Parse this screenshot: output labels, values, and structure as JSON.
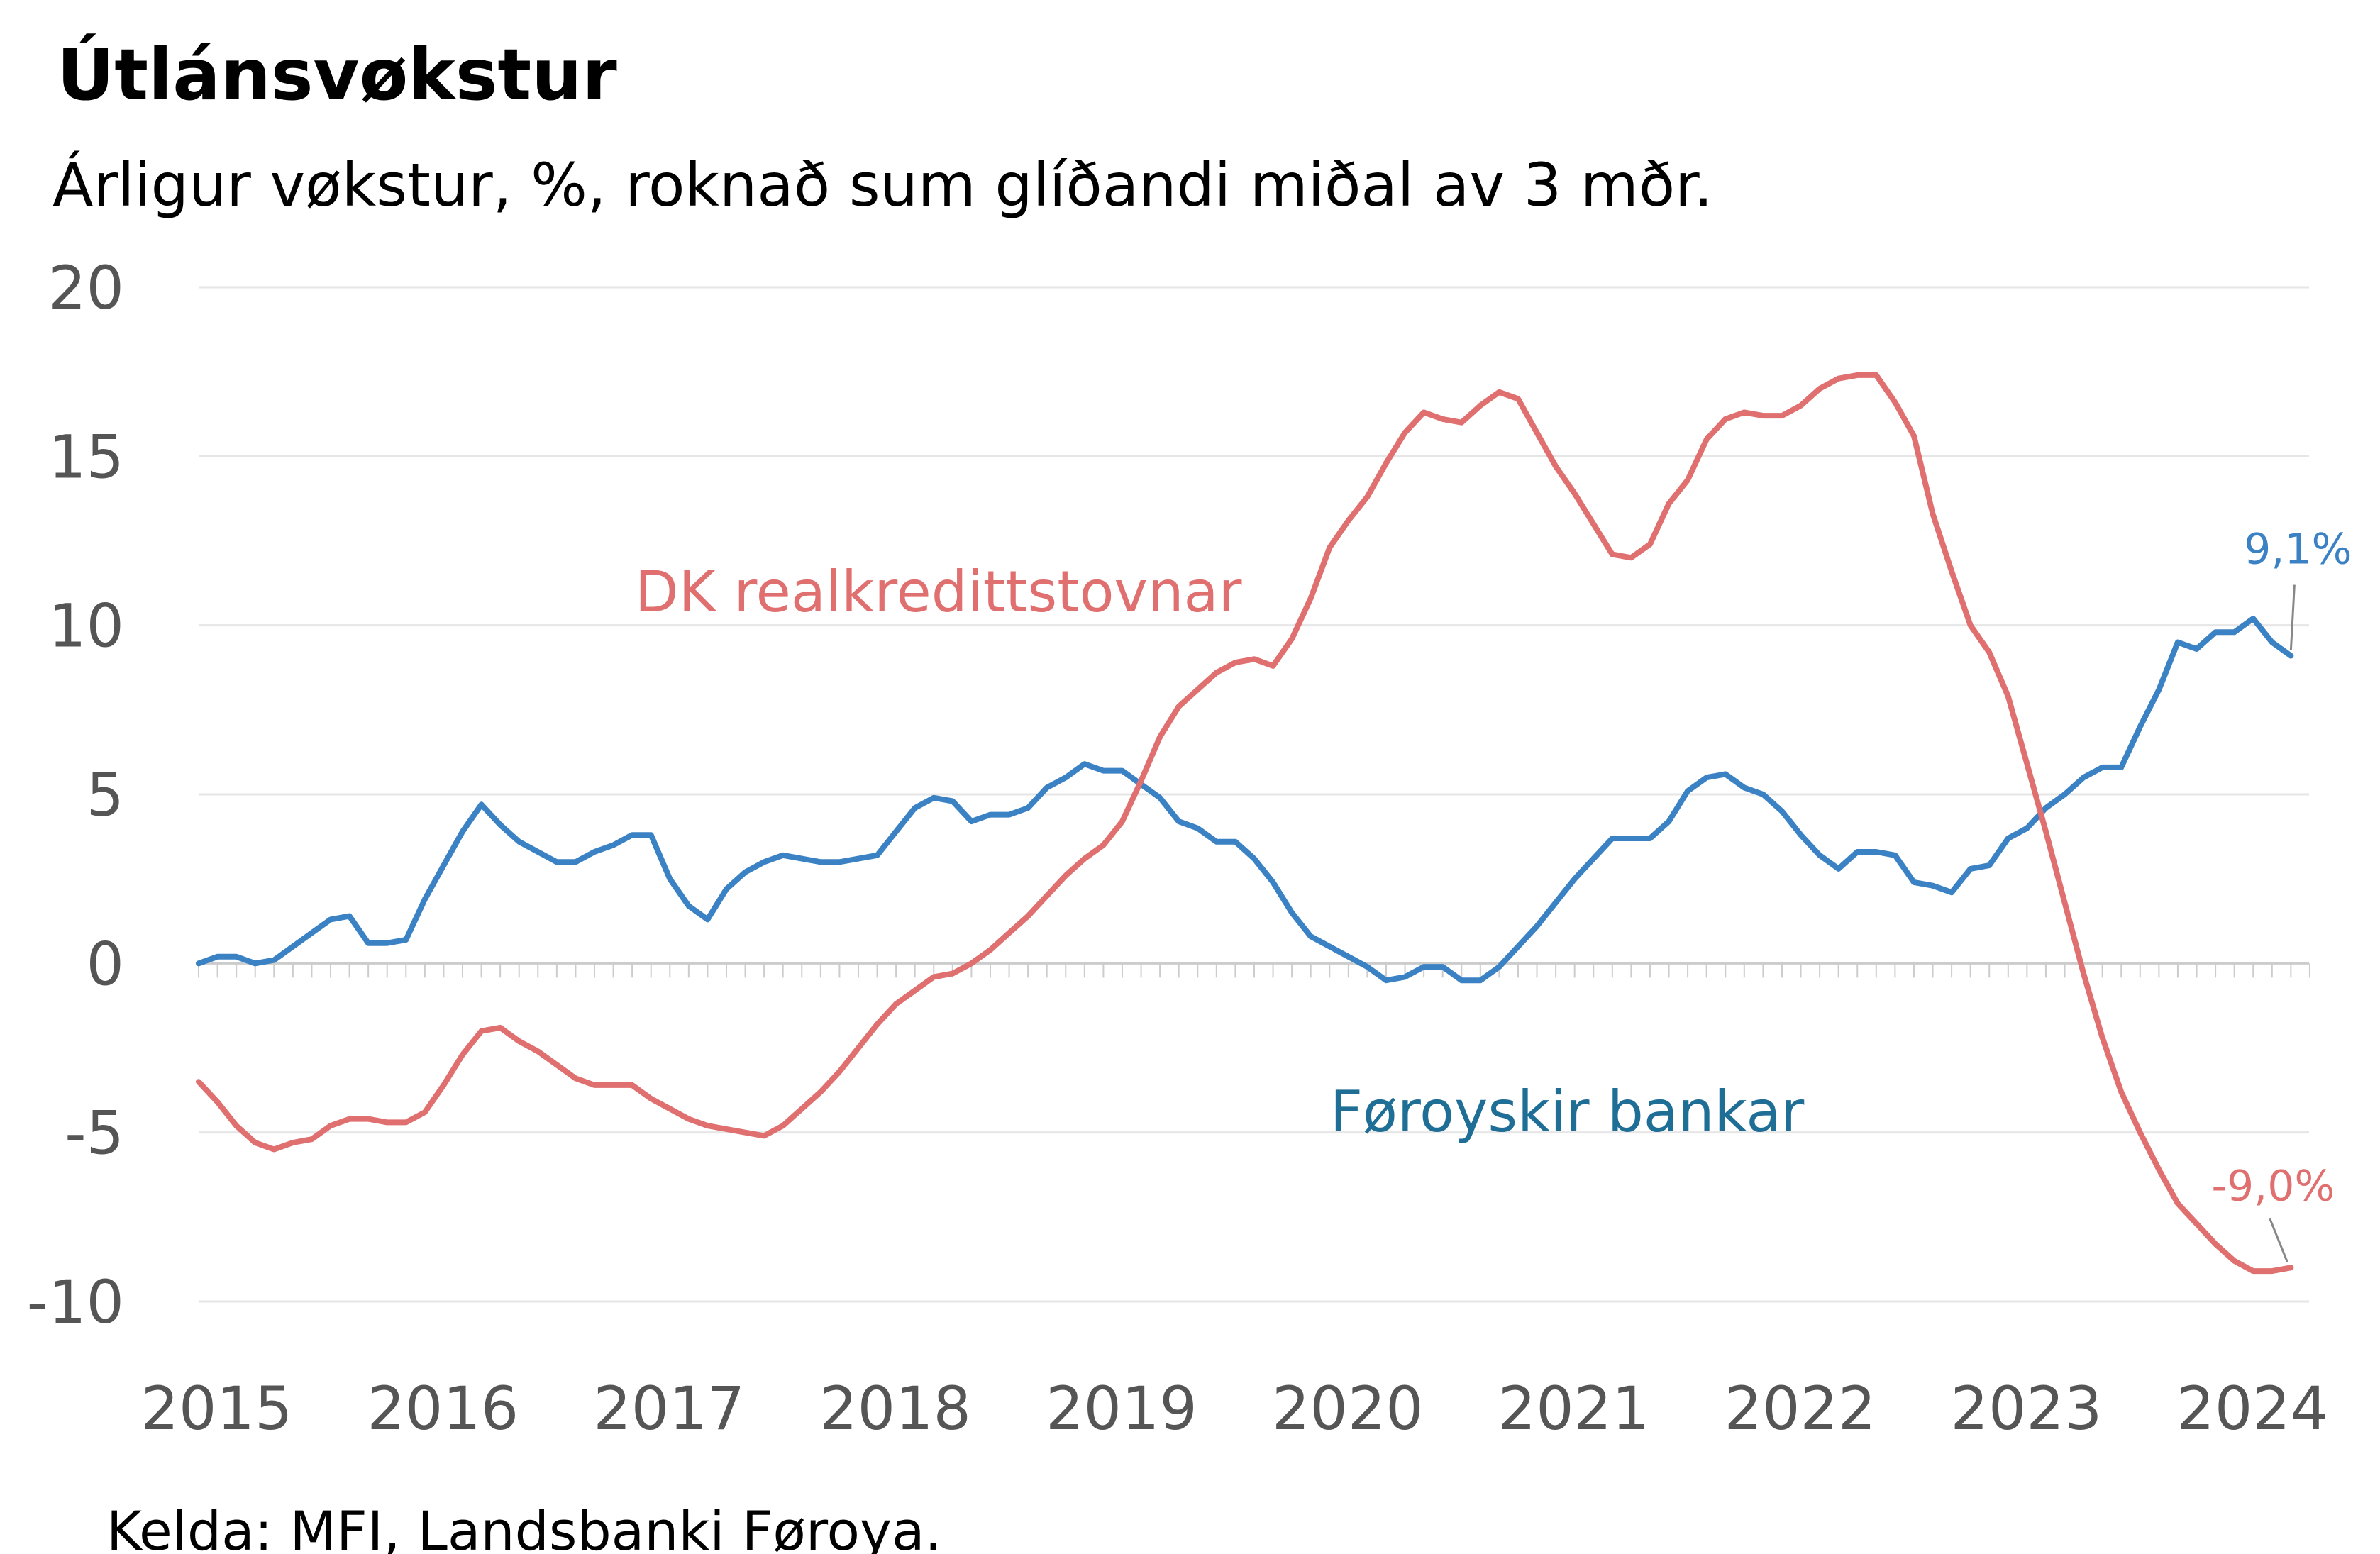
{
  "chart_data": {
    "type": "line",
    "title": "Útlánsvøkstur",
    "subtitle": "Árligur vøkstur, %, roknað sum glíðandi miðal av 3 mðr.",
    "source": "Kelda: MFI, Landsbanki Føroya.",
    "xlabel": "",
    "ylabel": "",
    "ylim": [
      -10,
      20
    ],
    "yticks": [
      "-10",
      "-5",
      "0",
      "5",
      "10",
      "15",
      "20"
    ],
    "x_start": 2014.92,
    "x_end": 2024.25,
    "x_step": 0.08333,
    "xticks": [
      "2015",
      "2016",
      "2017",
      "2018",
      "2019",
      "2020",
      "2021",
      "2022",
      "2023",
      "2024"
    ],
    "grid": true,
    "colors": {
      "foroyskir": "#3b82c4",
      "dk": "#e07070",
      "foroyskir_label": "#1f6e96"
    },
    "series": [
      {
        "name": "Føroyskir bankar",
        "color": "#3b82c4",
        "end_label": "9,1%",
        "values": [
          0.0,
          0.2,
          0.2,
          0.0,
          0.1,
          0.5,
          0.9,
          1.3,
          1.4,
          0.6,
          0.6,
          0.7,
          1.9,
          2.9,
          3.9,
          4.7,
          4.1,
          3.6,
          3.3,
          3.0,
          3.0,
          3.3,
          3.5,
          3.8,
          3.8,
          2.5,
          1.7,
          1.3,
          2.2,
          2.7,
          3.0,
          3.2,
          3.1,
          3.0,
          3.0,
          3.1,
          3.2,
          3.9,
          4.6,
          4.9,
          4.8,
          4.2,
          4.4,
          4.4,
          4.6,
          5.2,
          5.5,
          5.9,
          5.7,
          5.7,
          5.3,
          4.9,
          4.2,
          4.0,
          3.6,
          3.6,
          3.1,
          2.4,
          1.5,
          0.8,
          0.5,
          0.2,
          -0.1,
          -0.5,
          -0.4,
          -0.1,
          -0.1,
          -0.5,
          -0.5,
          -0.1,
          0.5,
          1.1,
          1.8,
          2.5,
          3.1,
          3.7,
          3.7,
          3.7,
          4.2,
          5.1,
          5.5,
          5.6,
          5.2,
          5.0,
          4.5,
          3.8,
          3.2,
          2.8,
          3.3,
          3.3,
          3.2,
          2.4,
          2.3,
          2.1,
          2.8,
          2.9,
          3.7,
          4.0,
          4.6,
          5.0,
          5.5,
          5.8,
          5.8,
          7.0,
          8.1,
          9.5,
          9.3,
          9.8,
          9.8,
          10.2,
          9.5,
          9.1
        ]
      },
      {
        "name": "DK realkredittstovnar",
        "color": "#e07070",
        "end_label": "-9,0%",
        "values": [
          -3.5,
          -4.1,
          -4.8,
          -5.3,
          -5.5,
          -5.3,
          -5.2,
          -4.8,
          -4.6,
          -4.6,
          -4.7,
          -4.7,
          -4.4,
          -3.6,
          -2.7,
          -2.0,
          -1.9,
          -2.3,
          -2.6,
          -3.0,
          -3.4,
          -3.6,
          -3.6,
          -3.6,
          -4.0,
          -4.3,
          -4.6,
          -4.8,
          -4.9,
          -5.0,
          -5.1,
          -4.8,
          -4.3,
          -3.8,
          -3.2,
          -2.5,
          -1.8,
          -1.2,
          -0.8,
          -0.4,
          -0.3,
          0.0,
          0.4,
          0.9,
          1.4,
          2.0,
          2.6,
          3.1,
          3.5,
          4.2,
          5.4,
          6.7,
          7.6,
          8.1,
          8.6,
          8.9,
          9.0,
          8.8,
          9.6,
          10.8,
          12.3,
          13.1,
          13.8,
          14.8,
          15.7,
          16.3,
          16.1,
          16.0,
          16.5,
          16.9,
          16.7,
          15.7,
          14.7,
          13.9,
          13.0,
          12.1,
          12.0,
          12.4,
          13.6,
          14.3,
          15.5,
          16.1,
          16.3,
          16.2,
          16.2,
          16.5,
          17.0,
          17.3,
          17.4,
          17.4,
          16.6,
          15.6,
          13.3,
          11.6,
          10.0,
          9.2,
          7.9,
          5.9,
          3.9,
          1.8,
          -0.3,
          -2.2,
          -3.8,
          -5.0,
          -6.1,
          -7.1,
          -7.7,
          -8.3,
          -8.8,
          -9.1,
          -9.1,
          -9.0
        ]
      }
    ]
  }
}
